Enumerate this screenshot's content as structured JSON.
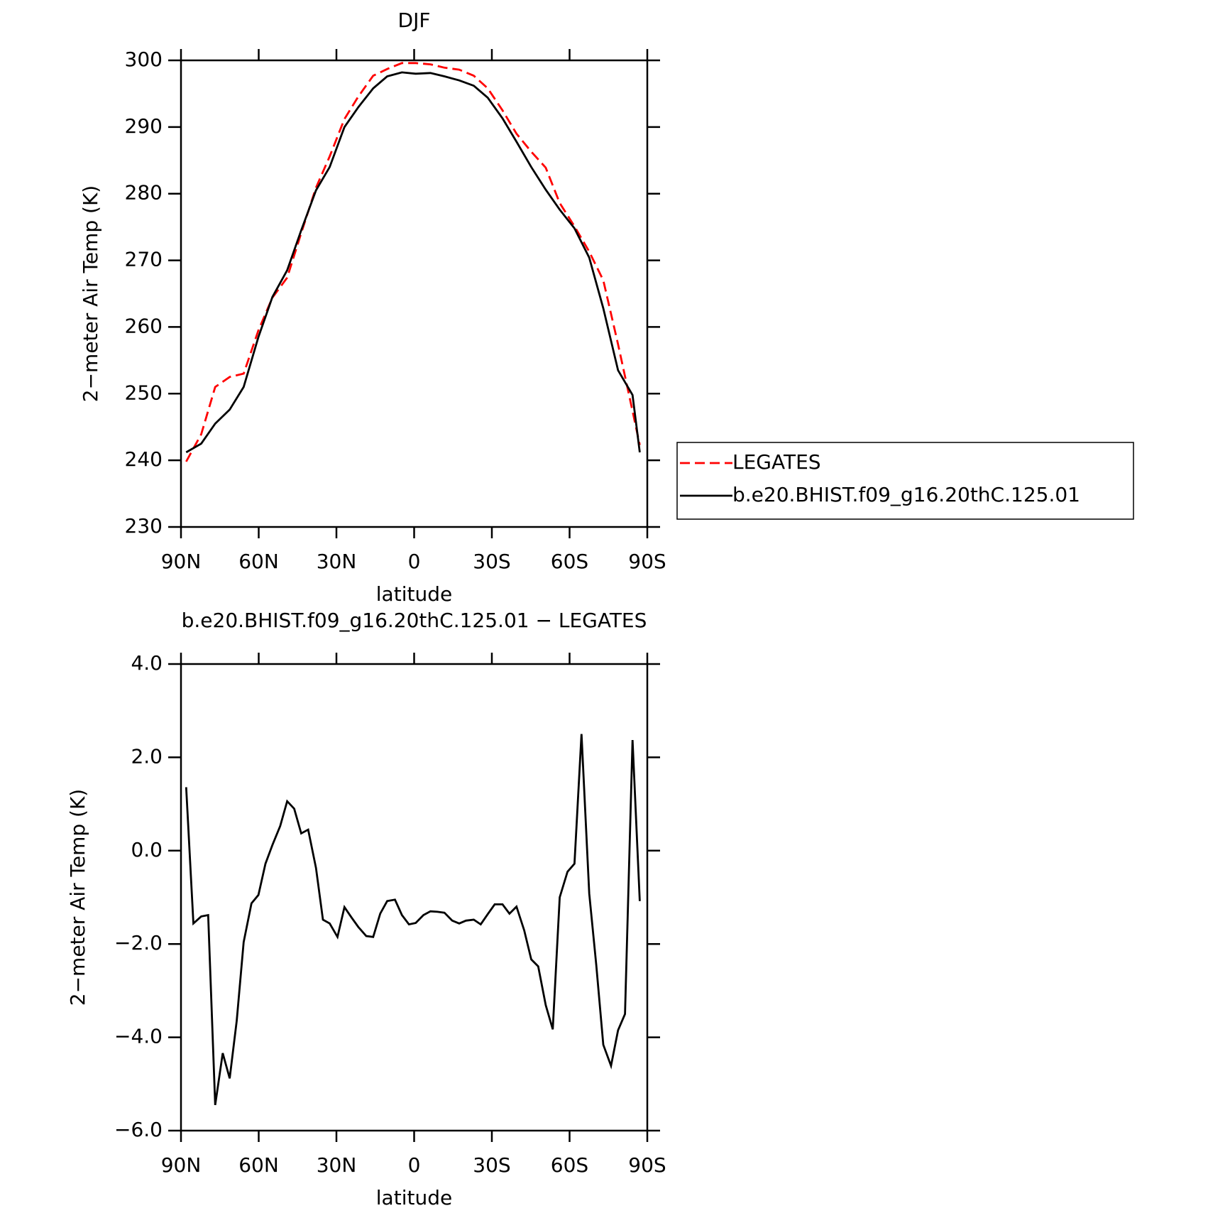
{
  "chart_data": [
    {
      "type": "line",
      "title": "DJF",
      "xlabel": "latitude",
      "ylabel": "2−meter Air Temp (K)",
      "x": [
        88,
        82.2,
        76.8,
        71.2,
        65.8,
        60.1,
        54.7,
        49.0,
        43.6,
        37.9,
        32.6,
        26.9,
        21.5,
        15.8,
        10.4,
        4.7,
        -0.6,
        -6.3,
        -11.7,
        -17.4,
        -23.0,
        -28.4,
        -34.1,
        -39.5,
        -45.2,
        -50.8,
        -56.2,
        -61.9,
        -67.6,
        -73.0,
        -78.7,
        -84.3,
        -87.1
      ],
      "xlim": [
        90,
        -90
      ],
      "xticks": [
        {
          "value": 90,
          "label": "90N"
        },
        {
          "value": 60,
          "label": "60N"
        },
        {
          "value": 30,
          "label": "30N"
        },
        0,
        {
          "value": -30,
          "label": "30S"
        },
        {
          "value": -60,
          "label": "60S"
        },
        {
          "value": -90,
          "label": "90S"
        }
      ],
      "ylim": [
        230,
        300
      ],
      "yticks": [
        230,
        240,
        250,
        260,
        270,
        280,
        290,
        300
      ],
      "legend": "right",
      "series": [
        {
          "name": "LEGATES",
          "color": "#ff0000",
          "dashed": true,
          "values": [
            239.8,
            243.9,
            251.0,
            252.5,
            253.0,
            259.5,
            264.4,
            267.4,
            274.1,
            280.9,
            285.6,
            291.2,
            294.6,
            297.7,
            298.7,
            299.6,
            299.6,
            299.4,
            298.9,
            298.6,
            297.7,
            295.8,
            292.5,
            289.0,
            286.3,
            283.9,
            278.6,
            275.1,
            271.3,
            267.0,
            257.4,
            247.4,
            242.3
          ]
        },
        {
          "name": "b.e20.BHIST.f09_g16.20thC.125.01",
          "color": "#000000",
          "dashed": false,
          "values": [
            241.2,
            242.5,
            245.5,
            247.6,
            251.0,
            258.5,
            264.5,
            268.5,
            274.5,
            280.5,
            284.0,
            290.0,
            293.0,
            295.8,
            297.6,
            298.2,
            298.0,
            298.1,
            297.6,
            297.0,
            296.2,
            294.4,
            291.3,
            287.8,
            284.0,
            280.6,
            277.6,
            274.8,
            270.4,
            262.8,
            253.5,
            249.8,
            241.2
          ]
        }
      ]
    },
    {
      "type": "line",
      "title": "b.e20.BHIST.f09_g16.20thC.125.01 − LEGATES",
      "xlabel": "latitude",
      "ylabel": "2−meter Air Temp (K)",
      "x": [
        88,
        85.2,
        82.2,
        79.5,
        76.8,
        73.9,
        71.2,
        68.5,
        65.8,
        62.8,
        60.1,
        57.4,
        54.7,
        51.7,
        49.0,
        46.3,
        43.6,
        40.9,
        37.9,
        35.2,
        32.6,
        29.6,
        26.9,
        24.2,
        21.5,
        18.5,
        15.8,
        13.1,
        10.4,
        7.4,
        4.7,
        2.0,
        -0.6,
        -3.6,
        -6.3,
        -9.0,
        -11.7,
        -14.7,
        -17.4,
        -20.0,
        -23.0,
        -25.7,
        -28.4,
        -31.1,
        -34.1,
        -36.8,
        -39.5,
        -42.5,
        -45.2,
        -47.9,
        -50.8,
        -53.5,
        -56.2,
        -59.2,
        -61.9,
        -64.6,
        -67.6,
        -70.3,
        -73.0,
        -76.0,
        -78.7,
        -81.4,
        -84.3,
        -87.1
      ],
      "xlim": [
        90,
        -90
      ],
      "xticks": [
        {
          "value": 90,
          "label": "90N"
        },
        {
          "value": 60,
          "label": "60N"
        },
        {
          "value": 30,
          "label": "30N"
        },
        0,
        {
          "value": -30,
          "label": "30S"
        },
        {
          "value": -60,
          "label": "60S"
        },
        {
          "value": -90,
          "label": "90S"
        }
      ],
      "ylim": [
        -6,
        4
      ],
      "yticks": [
        {
          "value": -6,
          "label": "−6.0"
        },
        {
          "value": -4,
          "label": "−4.0"
        },
        {
          "value": -2,
          "label": "−2.0"
        },
        {
          "value": 0,
          "label": "0.0"
        },
        {
          "value": 2,
          "label": "2.0"
        },
        {
          "value": 4,
          "label": "4.0"
        }
      ],
      "series": [
        {
          "color": "#000000",
          "dashed": false,
          "values": [
            1.36,
            -1.56,
            -1.41,
            -1.38,
            -5.45,
            -4.34,
            -4.88,
            -3.65,
            -1.96,
            -1.13,
            -0.95,
            -0.28,
            0.12,
            0.53,
            1.06,
            0.9,
            0.37,
            0.45,
            -0.37,
            -1.48,
            -1.56,
            -1.85,
            -1.21,
            -1.43,
            -1.64,
            -1.83,
            -1.85,
            -1.35,
            -1.08,
            -1.05,
            -1.38,
            -1.58,
            -1.55,
            -1.38,
            -1.3,
            -1.31,
            -1.33,
            -1.5,
            -1.56,
            -1.5,
            -1.48,
            -1.58,
            -1.36,
            -1.15,
            -1.15,
            -1.35,
            -1.2,
            -1.71,
            -2.33,
            -2.48,
            -3.31,
            -3.83,
            -1.0,
            -0.45,
            -0.28,
            2.5,
            -0.92,
            -2.45,
            -4.16,
            -4.61,
            -3.85,
            -3.5,
            2.37,
            -1.08
          ]
        }
      ]
    }
  ]
}
